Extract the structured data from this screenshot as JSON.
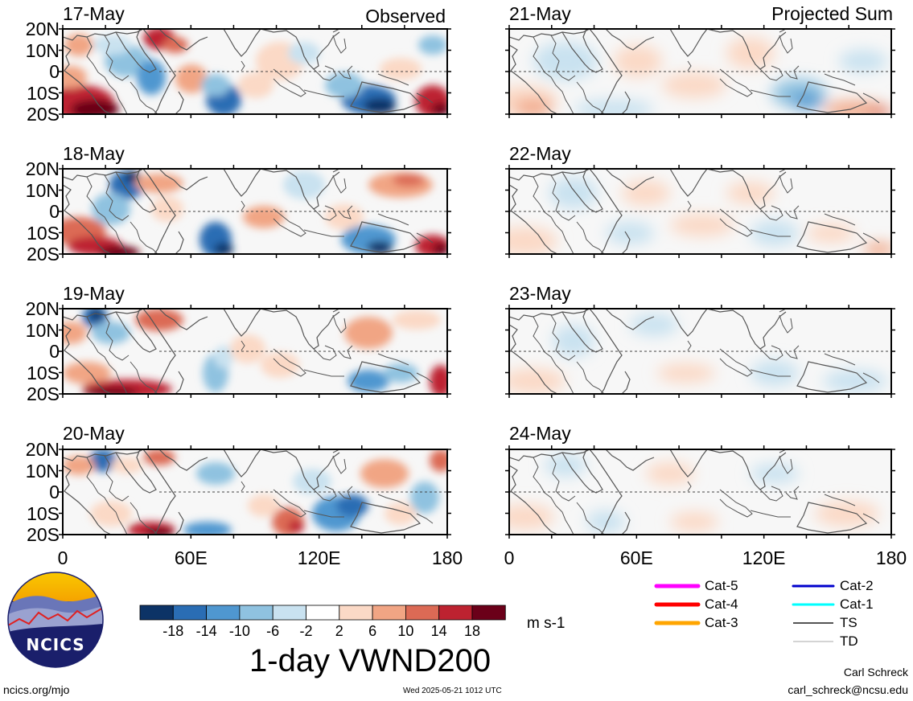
{
  "panels": {
    "observed": [
      "17-May",
      "18-May",
      "19-May",
      "20-May"
    ],
    "projected": [
      "21-May",
      "22-May",
      "23-May",
      "24-May"
    ],
    "observed_label": "Observed",
    "projected_label": "Projected Sum"
  },
  "lat_labels": [
    "20N",
    "10N",
    "0",
    "10S",
    "20S"
  ],
  "lon_labels": [
    "0",
    "60E",
    "120E",
    "180"
  ],
  "colorbar": {
    "colors": [
      "#0c3366",
      "#2a6db4",
      "#4f97d0",
      "#8fc2e0",
      "#c9e2f0",
      "#ffffff",
      "#fbd9c6",
      "#f1a584",
      "#dc6a55",
      "#bd2230",
      "#6b0019"
    ],
    "labels": [
      "-18",
      "-14",
      "-10",
      "-6",
      "-2",
      "2",
      "6",
      "10",
      "14",
      "18"
    ],
    "units": "m s-1"
  },
  "title": "1-day VWND200",
  "legend": [
    {
      "label": "Cat-5",
      "color": "#ff00ff"
    },
    {
      "label": "Cat-4",
      "color": "#ff0000"
    },
    {
      "label": "Cat-3",
      "color": "#ffa500"
    },
    {
      "label": "Cat-2",
      "color": "#0000cc"
    },
    {
      "label": "Cat-1",
      "color": "#00ffff"
    },
    {
      "label": "TS",
      "color": "#555555"
    },
    {
      "label": "TD",
      "color": "#aaaaaa"
    }
  ],
  "logo": {
    "text": "NCICS"
  },
  "footer": {
    "url": "ncics.org/mjo",
    "timestamp": "Wed 2025-05-21 1012 UTC",
    "author": "Carl Schreck",
    "email": "carl_schreck@ncsu.edu"
  }
}
